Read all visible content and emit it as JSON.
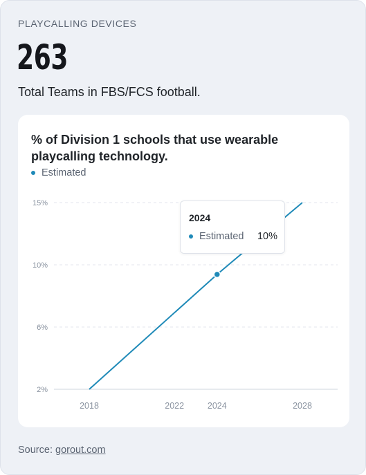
{
  "header": {
    "eyebrow": "PLAYCALLING DEVICES",
    "big_number": "263",
    "subtitle": "Total Teams in FBS/FCS football."
  },
  "source": {
    "prefix": "Source: ",
    "link_text": "gorout.com"
  },
  "colors": {
    "series": "#1f8ab8",
    "grid": "#e3e6ec"
  },
  "tooltip": {
    "title": "2024",
    "series_name": "Estimated",
    "value": "10%"
  },
  "chart_data": {
    "type": "line",
    "title": "% of Division 1 schools that use wearable playcalling technology.",
    "legend": [
      "Estimated"
    ],
    "x_ticks": [
      "2018",
      "2022",
      "2024",
      "2028"
    ],
    "y_ticks": [
      "15%",
      "10%",
      "6%",
      "2%"
    ],
    "series": [
      {
        "name": "Estimated",
        "x": [
          "2018",
          "2024",
          "2028"
        ],
        "y": [
          2,
          10,
          15
        ]
      }
    ],
    "highlight": {
      "x": "2024",
      "y": 10
    },
    "grid": true
  }
}
